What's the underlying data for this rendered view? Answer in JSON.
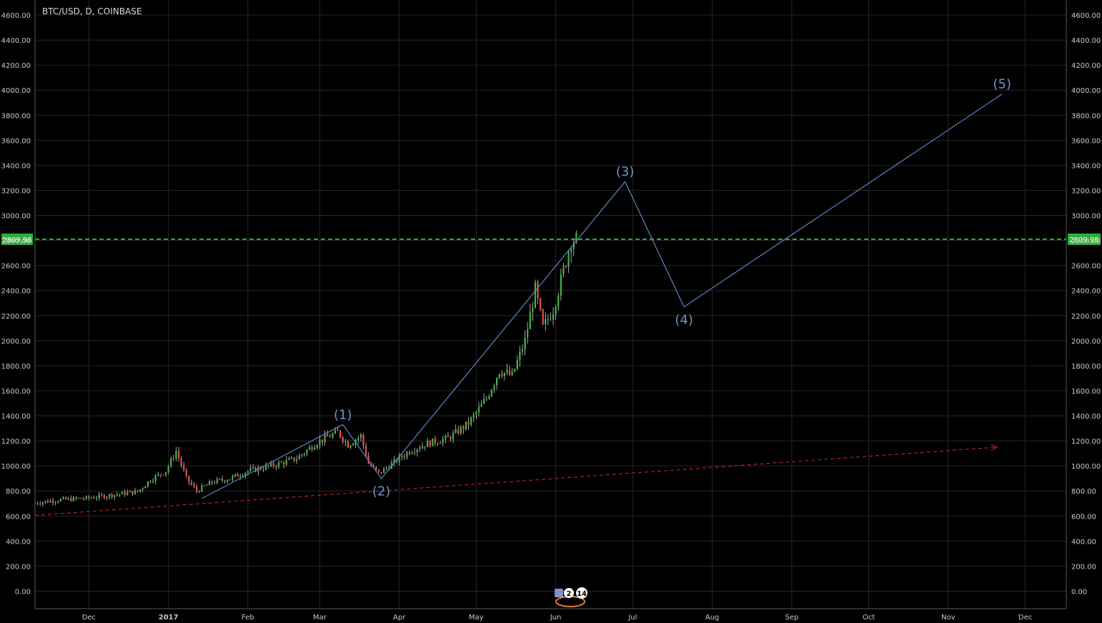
{
  "header": {
    "symbol": "BTC/USD, D, COINBASE"
  },
  "colors": {
    "background": "#000000",
    "grid": "#262626",
    "axis_text": "#c8c8c8",
    "candle_up": "#3fb54a",
    "candle_down": "#e84f49",
    "wave_line": "#5b86c5",
    "price_line": "#2fae3c",
    "trend_line": "#d02828"
  },
  "chart_data": {
    "type": "candlestick",
    "ylim": [
      -140,
      4720
    ],
    "y_ticks": [
      "0.00",
      "200.00",
      "400.00",
      "600.00",
      "800.00",
      "1000.00",
      "1200.00",
      "1400.00",
      "1600.00",
      "1800.00",
      "2000.00",
      "2200.00",
      "2400.00",
      "2600.00",
      "2800.00",
      "3000.00",
      "3200.00",
      "3400.00",
      "3600.00",
      "3800.00",
      "4000.00",
      "4200.00",
      "4400.00",
      "4600.00"
    ],
    "x_range": [
      "2016-11-10",
      "2017-12-17"
    ],
    "x_ticks": [
      {
        "label": "Dec",
        "date": "2016-12-01"
      },
      {
        "label": "2017",
        "date": "2017-01-01",
        "bold": true
      },
      {
        "label": "Feb",
        "date": "2017-02-01"
      },
      {
        "label": "Mar",
        "date": "2017-03-01"
      },
      {
        "label": "Apr",
        "date": "2017-04-01"
      },
      {
        "label": "May",
        "date": "2017-05-01"
      },
      {
        "label": "Jun",
        "date": "2017-06-01"
      },
      {
        "label": "Jul",
        "date": "2017-07-01"
      },
      {
        "label": "Aug",
        "date": "2017-08-01"
      },
      {
        "label": "Sep",
        "date": "2017-09-01"
      },
      {
        "label": "Oct",
        "date": "2017-10-01"
      },
      {
        "label": "Nov",
        "date": "2017-11-01"
      },
      {
        "label": "Dec",
        "date": "2017-12-01"
      }
    ],
    "price_path": [
      [
        "2016-11-10",
        705
      ],
      [
        "2016-11-20",
        730
      ],
      [
        "2016-11-30",
        742
      ],
      [
        "2016-12-10",
        768
      ],
      [
        "2016-12-20",
        795
      ],
      [
        "2016-12-25",
        890
      ],
      [
        "2016-12-31",
        960
      ],
      [
        "2017-01-04",
        1120
      ],
      [
        "2017-01-08",
        900
      ],
      [
        "2017-01-12",
        800
      ],
      [
        "2017-01-18",
        870
      ],
      [
        "2017-01-25",
        900
      ],
      [
        "2017-02-01",
        960
      ],
      [
        "2017-02-10",
        1000
      ],
      [
        "2017-02-20",
        1060
      ],
      [
        "2017-02-28",
        1190
      ],
      [
        "2017-03-08",
        1270
      ],
      [
        "2017-03-12",
        1170
      ],
      [
        "2017-03-17",
        1240
      ],
      [
        "2017-03-20",
        1020
      ],
      [
        "2017-03-24",
        940
      ],
      [
        "2017-03-28",
        1000
      ],
      [
        "2017-04-05",
        1120
      ],
      [
        "2017-04-12",
        1180
      ],
      [
        "2017-04-20",
        1220
      ],
      [
        "2017-04-28",
        1340
      ],
      [
        "2017-05-05",
        1540
      ],
      [
        "2017-05-10",
        1760
      ],
      [
        "2017-05-15",
        1720
      ],
      [
        "2017-05-20",
        2000
      ],
      [
        "2017-05-24",
        2410
      ],
      [
        "2017-05-27",
        2100
      ],
      [
        "2017-05-31",
        2250
      ],
      [
        "2017-06-04",
        2560
      ],
      [
        "2017-06-07",
        2800
      ],
      [
        "2017-06-09",
        2810
      ]
    ],
    "current_price": {
      "label": "2809.98",
      "value": 2809.98
    },
    "wave_points": [
      {
        "label": "",
        "date": "2017-01-14",
        "value": 740
      },
      {
        "label": "(1)",
        "date": "2017-03-10",
        "value": 1330
      },
      {
        "label": "(2)",
        "date": "2017-03-25",
        "value": 900
      },
      {
        "label": "(3)",
        "date": "2017-06-28",
        "value": 3270
      },
      {
        "label": "(4)",
        "date": "2017-07-21",
        "value": 2270
      },
      {
        "label": "(5)",
        "date": "2017-11-22",
        "value": 3970
      }
    ],
    "trend_line": {
      "from": {
        "date": "2016-11-10",
        "value": 605
      },
      "to": {
        "date": "2017-11-20",
        "value": 1150
      }
    },
    "event_badges": {
      "flag_count": "2",
      "other_count": "14"
    }
  }
}
